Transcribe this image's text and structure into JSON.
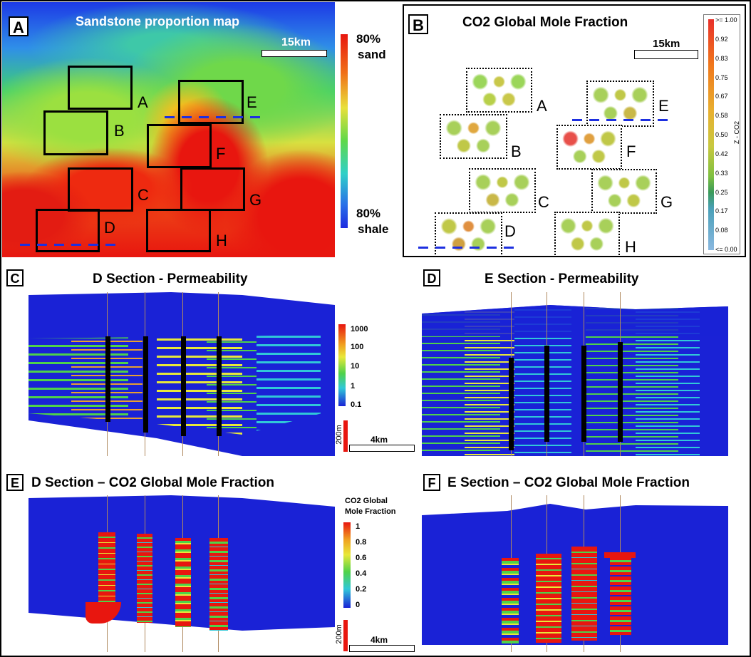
{
  "panelA": {
    "tag": "A",
    "title": "Sandstone proportion map",
    "scale": "15km",
    "legend_top_pct": "80%",
    "legend_top_word": "sand",
    "legend_bottom_pct": "80%",
    "legend_bottom_word": "shale",
    "boxes": [
      "A",
      "B",
      "C",
      "D",
      "E",
      "F",
      "G",
      "H"
    ]
  },
  "panelB": {
    "tag": "B",
    "title": "CO2 Global Mole Fraction",
    "scale": "15km",
    "boxes": [
      "A",
      "B",
      "C",
      "D",
      "E",
      "F",
      "G",
      "H"
    ],
    "colorbar_title": "Z - CO2",
    "colorbar_ticks": [
      ">= 1.00",
      "0.92",
      "0.83",
      "0.75",
      "0.67",
      "0.58",
      "0.50",
      "0.42",
      "0.33",
      "0.25",
      "0.17",
      "0.08",
      "<= 0.00"
    ]
  },
  "panelC": {
    "tag": "C",
    "title": "D Section - Permeability",
    "legend_ticks": [
      "1000",
      "100",
      "10",
      "1",
      "0.1"
    ],
    "scale_v": "200m",
    "scale_h": "4km"
  },
  "panelD": {
    "tag": "D",
    "title": "E Section - Permeability"
  },
  "panelE": {
    "tag": "E",
    "title": "D Section – CO2 Global Mole Fraction",
    "legend_title_1": "CO2 Global",
    "legend_title_2": "Mole Fraction",
    "legend_ticks": [
      "1",
      "0.8",
      "0.6",
      "0.4",
      "0.2",
      "0"
    ],
    "scale_v": "200m",
    "scale_h": "4km"
  },
  "panelF": {
    "tag": "F",
    "title": "E Section – CO2 Global Mole Fraction"
  },
  "colors": {
    "blue": "#1a22d6",
    "red": "#e8160f",
    "green": "#4fd24a",
    "yellow": "#e8e83a"
  }
}
